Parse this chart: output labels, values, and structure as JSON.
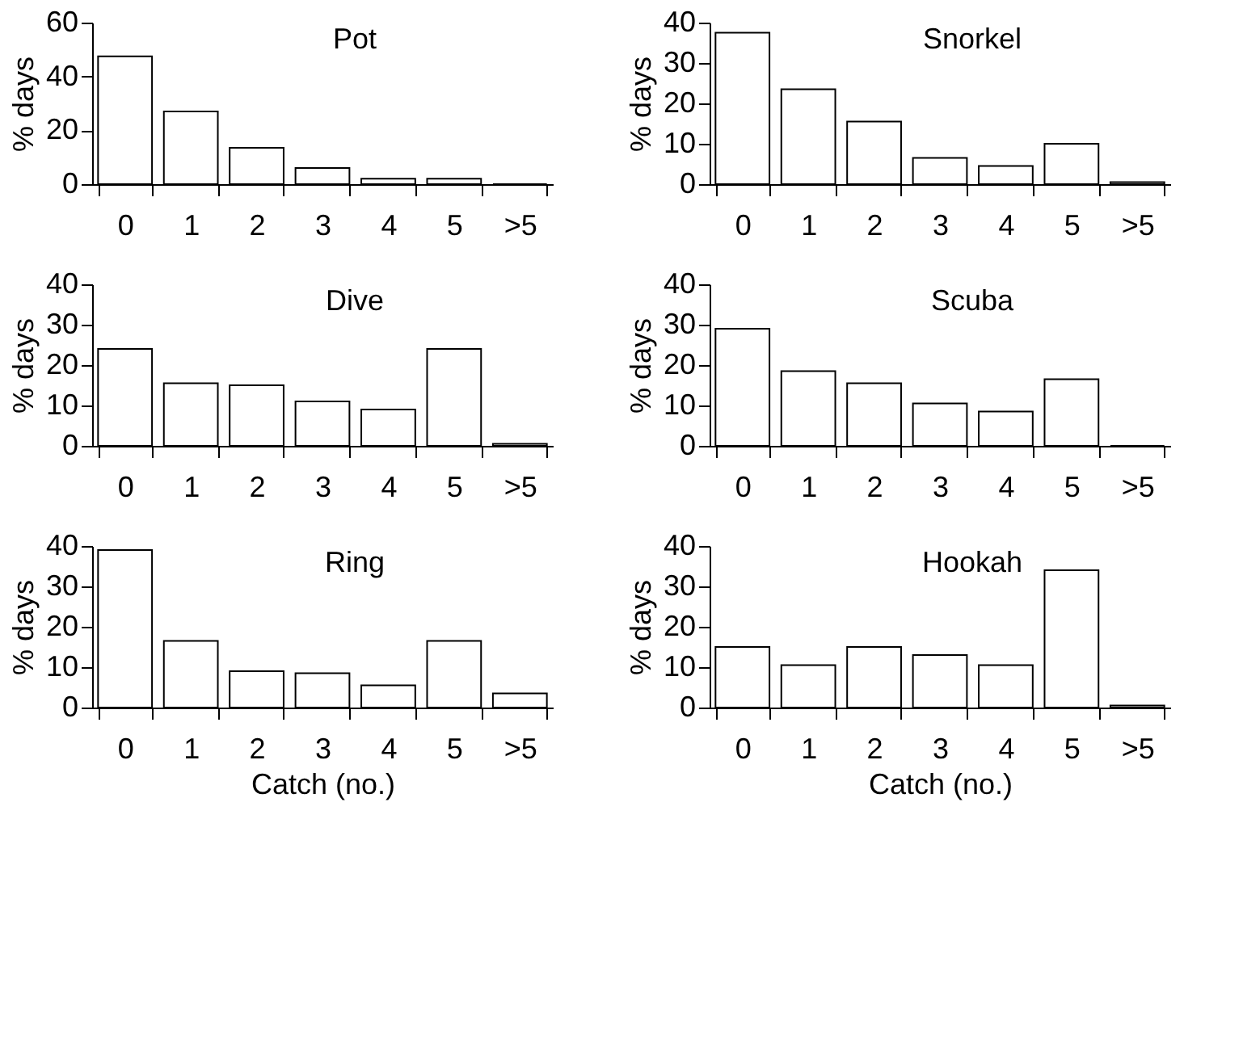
{
  "chart_data": [
    {
      "type": "bar",
      "title": "Pot",
      "ylabel": "% days",
      "categories": [
        "0",
        "1",
        "2",
        "3",
        "4",
        "5",
        ">5"
      ],
      "values": [
        47.5,
        27,
        13.5,
        6,
        2,
        2,
        0
      ],
      "color": "#ffffff",
      "ylim": [
        0,
        60
      ],
      "yticks": [
        0,
        20,
        40,
        60
      ],
      "grid": false
    },
    {
      "type": "bar",
      "title": "Snorkel",
      "ylabel": "% days",
      "categories": [
        "0",
        "1",
        "2",
        "3",
        "4",
        "5",
        ">5"
      ],
      "values": [
        37.5,
        23.5,
        15.5,
        6.5,
        4.5,
        10,
        0.5
      ],
      "color": "#ffffff",
      "ylim": [
        0,
        40
      ],
      "yticks": [
        0,
        10,
        20,
        30,
        40
      ],
      "grid": false
    },
    {
      "type": "bar",
      "title": "Dive",
      "ylabel": "% days",
      "categories": [
        "0",
        "1",
        "2",
        "3",
        "4",
        "5",
        ">5"
      ],
      "values": [
        24,
        15.5,
        15,
        11,
        9,
        24,
        0.5
      ],
      "color": "#ffffff",
      "ylim": [
        0,
        40
      ],
      "yticks": [
        0,
        10,
        20,
        30,
        40
      ],
      "grid": false
    },
    {
      "type": "bar",
      "title": "Scuba",
      "ylabel": "% days",
      "categories": [
        "0",
        "1",
        "2",
        "3",
        "4",
        "5",
        ">5"
      ],
      "values": [
        29,
        18.5,
        15.5,
        10.5,
        8.5,
        16.5,
        0
      ],
      "color": "#ffffff",
      "ylim": [
        0,
        40
      ],
      "yticks": [
        0,
        10,
        20,
        30,
        40
      ],
      "grid": false
    },
    {
      "type": "bar",
      "title": "Ring",
      "xlabel": "Catch (no.)",
      "ylabel": "% days",
      "categories": [
        "0",
        "1",
        "2",
        "3",
        "4",
        "5",
        ">5"
      ],
      "values": [
        39,
        16.5,
        9,
        8.5,
        5.5,
        16.5,
        3.5
      ],
      "color": "#ffffff",
      "ylim": [
        0,
        40
      ],
      "yticks": [
        0,
        10,
        20,
        30,
        40
      ],
      "grid": false
    },
    {
      "type": "bar",
      "title": "Hookah",
      "xlabel": "Catch (no.)",
      "ylabel": "% days",
      "categories": [
        "0",
        "1",
        "2",
        "3",
        "4",
        "5",
        ">5"
      ],
      "values": [
        15,
        10.5,
        15,
        13,
        10.5,
        34,
        0.5
      ],
      "color": "#ffffff",
      "ylim": [
        0,
        40
      ],
      "yticks": [
        0,
        10,
        20,
        30,
        40
      ],
      "grid": false
    }
  ]
}
